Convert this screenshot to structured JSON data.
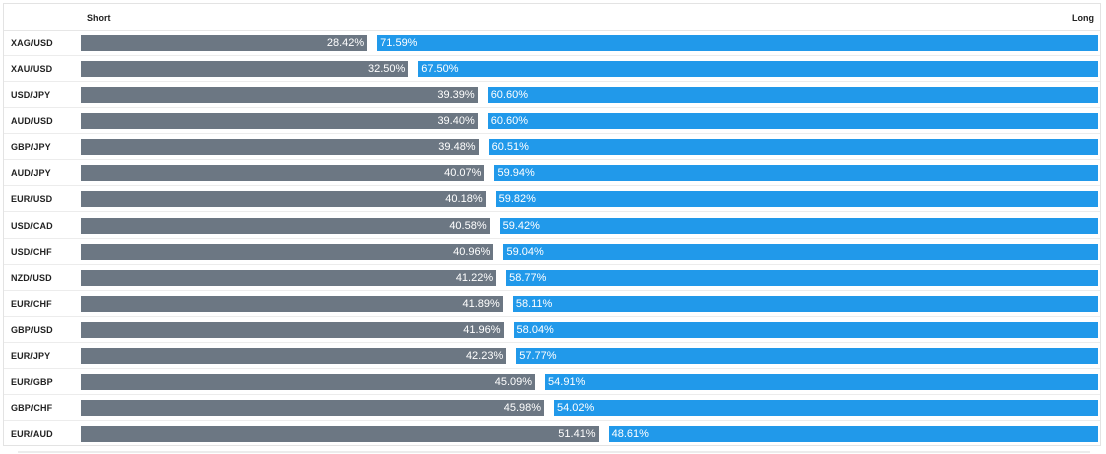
{
  "header": {
    "short_label": "Short",
    "long_label": "Long"
  },
  "colors": {
    "short": "#6c7783",
    "long": "#2199ea"
  },
  "chart_data": {
    "type": "bar",
    "orientation": "horizontal-stacked",
    "categories": [
      "XAG/USD",
      "XAU/USD",
      "USD/JPY",
      "AUD/USD",
      "GBP/JPY",
      "AUD/JPY",
      "EUR/USD",
      "USD/CAD",
      "USD/CHF",
      "NZD/USD",
      "EUR/CHF",
      "GBP/USD",
      "EUR/JPY",
      "EUR/GBP",
      "GBP/CHF",
      "EUR/AUD"
    ],
    "series": [
      {
        "name": "Short",
        "values": [
          28.42,
          32.5,
          39.39,
          39.4,
          39.48,
          40.07,
          40.18,
          40.58,
          40.96,
          41.22,
          41.89,
          41.96,
          42.23,
          45.09,
          45.98,
          51.41
        ]
      },
      {
        "name": "Long",
        "values": [
          71.59,
          67.5,
          60.6,
          60.6,
          60.51,
          59.94,
          59.82,
          59.42,
          59.04,
          58.77,
          58.11,
          58.04,
          57.77,
          54.91,
          54.02,
          48.61
        ]
      }
    ],
    "labels": {
      "short": [
        "28.42%",
        "32.50%",
        "39.39%",
        "39.40%",
        "39.48%",
        "40.07%",
        "40.18%",
        "40.58%",
        "40.96%",
        "41.22%",
        "41.89%",
        "41.96%",
        "42.23%",
        "45.09%",
        "45.98%",
        "51.41%"
      ],
      "long": [
        "71.59%",
        "67.50%",
        "60.60%",
        "60.60%",
        "60.51%",
        "59.94%",
        "59.82%",
        "59.42%",
        "59.04%",
        "58.77%",
        "58.11%",
        "58.04%",
        "57.77%",
        "54.91%",
        "54.02%",
        "48.61%"
      ]
    }
  }
}
